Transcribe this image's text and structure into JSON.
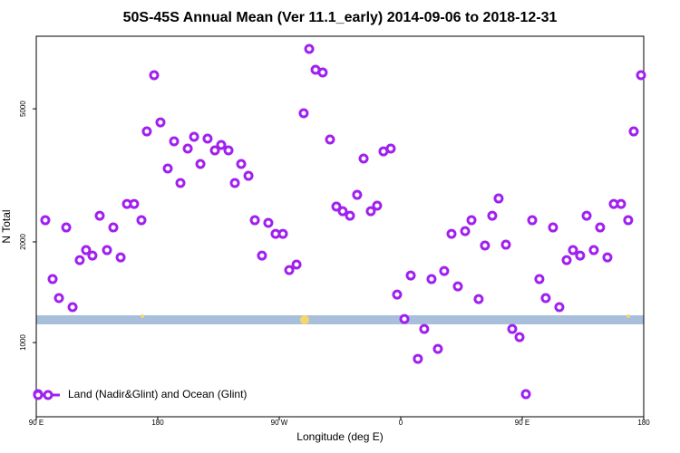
{
  "chart_data": {
    "type": "scatter",
    "title": "50S-45S Annual Mean (Ver 11.1_early)   2014-09-06 to 2018-12-31",
    "x_label": "Longitude (deg E)",
    "y_label": "N Total",
    "y_log": true,
    "legend": "lower left",
    "xlim": [
      90,
      540
    ],
    "ylim": [
      600,
      8240
    ],
    "xticks": [
      {
        "value": 90,
        "label": "90 E"
      },
      180,
      {
        "value": 270,
        "label": "90 W"
      },
      {
        "value": 360,
        "label": "0"
      },
      {
        "value": 450,
        "label": "90 E"
      },
      {
        "value": 540,
        "label": "180"
      }
    ],
    "yticks": [
      1000,
      2000,
      5000
    ],
    "x": [
      91.3,
      96.7,
      102.1,
      106.8,
      112.2,
      116.9,
      122.2,
      126.9,
      131.6,
      137.0,
      142.4,
      147.1,
      152.5,
      157.2,
      162.5,
      167.9,
      171.9,
      177.3,
      182.0,
      187.4,
      192.1,
      196.8,
      202.2,
      206.9,
      211.6,
      216.9,
      222.3,
      227.0,
      232.4,
      237.1,
      241.8,
      247.2,
      251.9,
      257.2,
      261.9,
      267.3,
      272.7,
      277.4,
      282.8,
      288.1,
      292.2,
      296.9,
      302.2,
      307.6,
      312.3,
      317.0,
      322.4,
      327.7,
      332.5,
      337.8,
      342.5,
      347.2,
      352.6,
      357.3,
      362.7,
      367.4,
      372.7,
      377.4,
      382.8,
      387.5,
      392.2,
      397.6,
      402.3,
      407.7,
      412.4,
      417.7,
      422.4,
      427.8,
      432.5,
      437.9,
      442.6,
      448.0,
      452.7,
      457.4,
      462.7,
      467.4,
      472.8,
      477.5,
      482.9,
      487.6,
      492.9,
      497.7,
      503.0,
      507.7,
      513.1,
      517.8,
      523.2,
      528.5,
      532.6,
      538.0
    ],
    "series": [
      {
        "name": "Land (Nadir&Glint) and Ocean (Glint)",
        "color": "#a020f0",
        "values": [
          701,
          2322,
          1548,
          1358,
          2209,
          1276,
          1764,
          1890,
          1820,
          2395,
          1890,
          2209,
          1797,
          2597,
          2597,
          2322,
          4279,
          6303,
          4554,
          3314,
          3996,
          2999,
          3802,
          4123,
          3420,
          4072,
          3754,
          3898,
          3754,
          2999,
          3420,
          3152,
          2322,
          1820,
          2279,
          2114,
          2114,
          1647,
          1711,
          4849,
          7551,
          6543,
          6421,
          4046,
          2550,
          2471,
          2395,
          2765,
          3549,
          2471,
          2566,
          3730,
          3802,
          1392,
          1176,
          1587,
          894,
          1098,
          1548,
          957,
          1637,
          2114,
          1472,
          2154,
          2322,
          1349,
          1950,
          2395,
          2697,
          1962,
          1098,
          1038,
          701,
          2322,
          1548,
          1358,
          2209,
          1276,
          1764,
          1890,
          1820,
          2395,
          1890,
          2209,
          1797,
          2597,
          2597,
          2322,
          4279,
          6303
        ]
      }
    ]
  }
}
